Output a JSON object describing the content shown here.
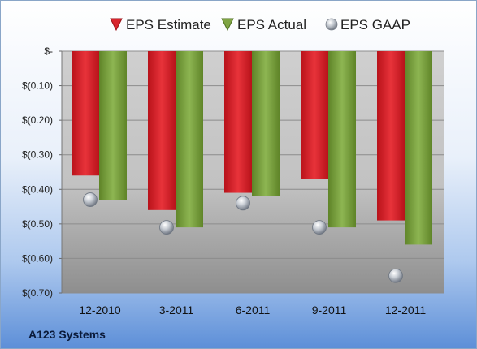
{
  "footer_label": "A123 Systems",
  "colors": {
    "estimate": "#d8262e",
    "actual": "#7fa443",
    "gaap": "#b9bec6"
  },
  "chart_data": {
    "type": "bar",
    "categories": [
      "12-2010",
      "3-2011",
      "6-2011",
      "9-2011",
      "12-2011"
    ],
    "series": [
      {
        "name": "EPS Estimate",
        "kind": "bar",
        "values": [
          -0.36,
          -0.46,
          -0.41,
          -0.37,
          -0.49
        ]
      },
      {
        "name": "EPS Actual",
        "kind": "bar",
        "values": [
          -0.43,
          -0.51,
          -0.42,
          -0.51,
          -0.56
        ]
      },
      {
        "name": "EPS GAAP",
        "kind": "marker",
        "values": [
          -0.43,
          -0.51,
          -0.44,
          -0.51,
          -0.65
        ]
      }
    ],
    "yticks": [
      0,
      -0.1,
      -0.2,
      -0.3,
      -0.4,
      -0.5,
      -0.6,
      -0.7
    ],
    "ytick_labels": [
      "$-",
      "$(0.10)",
      "$(0.20)",
      "$(0.30)",
      "$(0.40)",
      "$(0.50)",
      "$(0.60)",
      "$(0.70)"
    ],
    "ylim": [
      -0.7,
      0
    ],
    "legend": "top",
    "grid": true
  }
}
